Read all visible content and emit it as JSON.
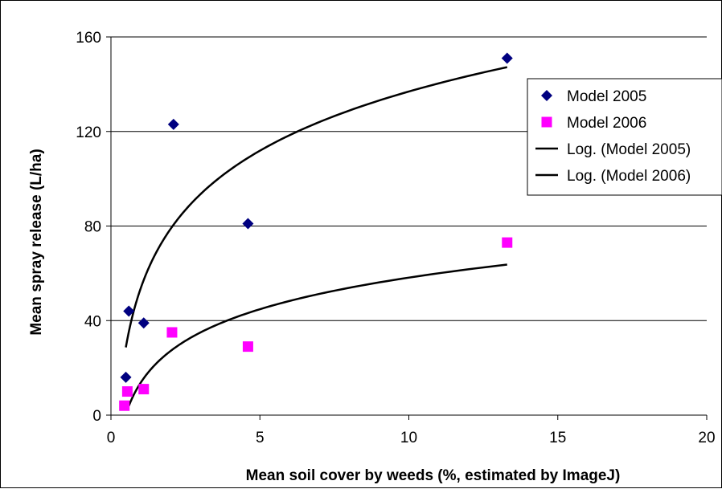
{
  "chart_data": {
    "type": "scatter",
    "title": "",
    "xlabel": "Mean soil cover by weeds (%, estimated by ImageJ)",
    "ylabel": "Mean spray release (L/ha)",
    "xlim": [
      0,
      20
    ],
    "ylim": [
      0,
      160
    ],
    "x_ticks": [
      "0",
      "5",
      "10",
      "15",
      "20"
    ],
    "y_ticks": [
      "0",
      "40",
      "80",
      "120",
      "160"
    ],
    "grid": "horizontal",
    "legend_position": "right",
    "series": [
      {
        "name": "Model 2005",
        "marker": "diamond",
        "color": "#000080",
        "points": [
          {
            "x": 0.5,
            "y": 16
          },
          {
            "x": 0.6,
            "y": 44
          },
          {
            "x": 1.1,
            "y": 39
          },
          {
            "x": 2.1,
            "y": 123
          },
          {
            "x": 4.6,
            "y": 81
          },
          {
            "x": 13.3,
            "y": 151
          }
        ]
      },
      {
        "name": "Model 2006",
        "marker": "square",
        "color": "#FF00FF",
        "points": [
          {
            "x": 0.45,
            "y": 4
          },
          {
            "x": 0.55,
            "y": 10
          },
          {
            "x": 1.1,
            "y": 11
          },
          {
            "x": 2.05,
            "y": 35
          },
          {
            "x": 4.6,
            "y": 29
          },
          {
            "x": 13.3,
            "y": 73
          }
        ]
      }
    ],
    "trendlines": [
      {
        "name": "Log. (Model 2005)",
        "type": "logarithmic",
        "color": "#000000",
        "x_range": [
          0.5,
          13.3
        ],
        "points": [
          {
            "x": 0.5,
            "y": 28.5
          },
          {
            "x": 2.0,
            "y": 80
          },
          {
            "x": 5.0,
            "y": 110
          },
          {
            "x": 13.3,
            "y": 148
          }
        ]
      },
      {
        "name": "Log. (Model 2006)",
        "type": "logarithmic",
        "color": "#000000",
        "x_range": [
          0.6,
          13.3
        ],
        "points": [
          {
            "x": 0.6,
            "y": 3
          },
          {
            "x": 2.0,
            "y": 29
          },
          {
            "x": 5.0,
            "y": 44
          },
          {
            "x": 13.3,
            "y": 63.5
          }
        ]
      }
    ]
  }
}
